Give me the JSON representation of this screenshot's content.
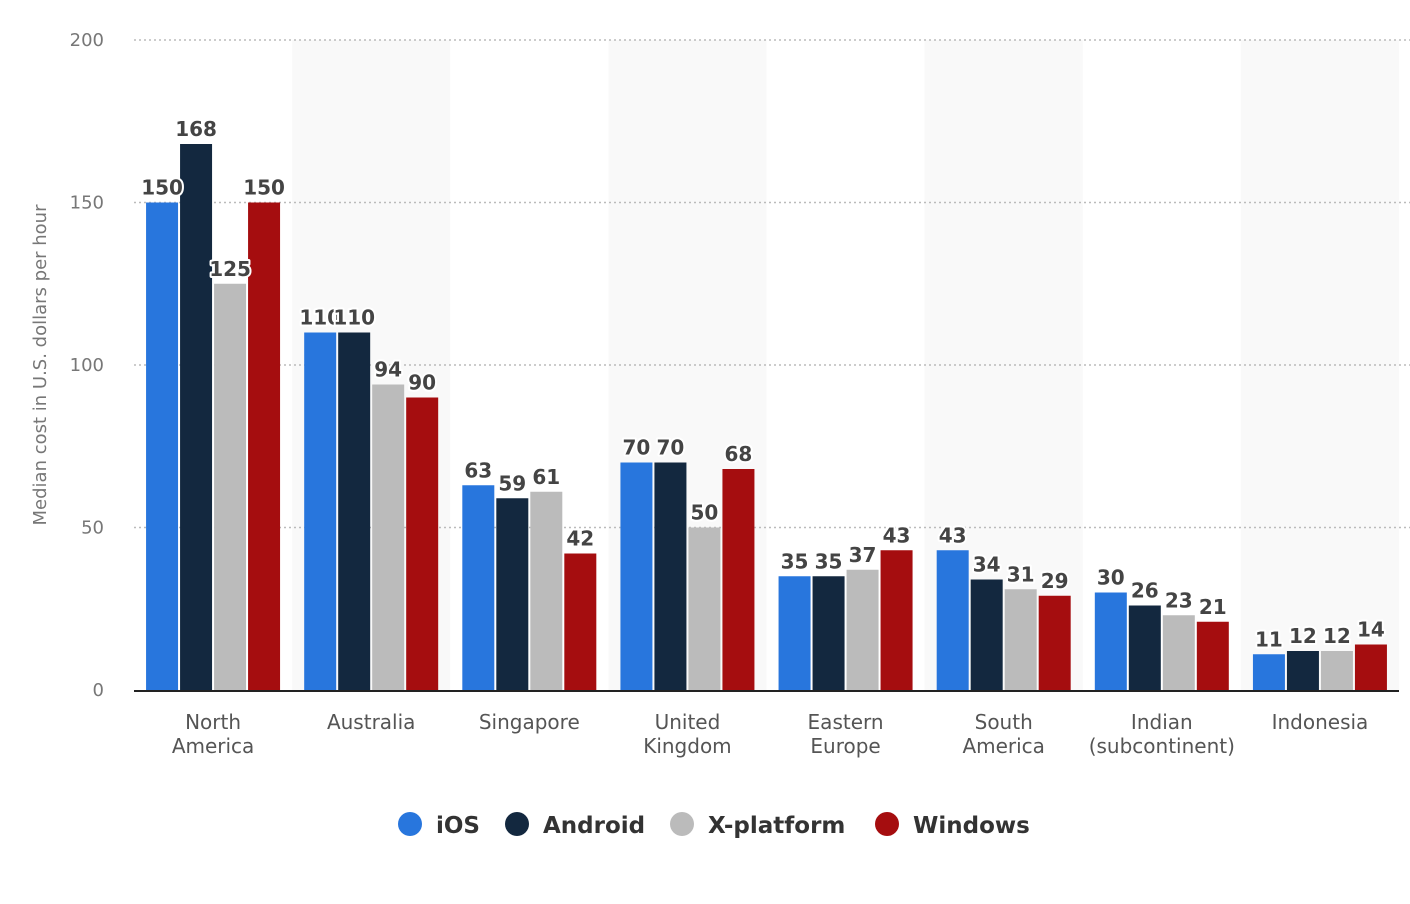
{
  "chart_data": {
    "type": "bar",
    "ylabel": "Median cost in U.S. dollars per hour",
    "xlabel": "",
    "ylim": [
      0,
      200
    ],
    "yticks": [
      0,
      50,
      100,
      150,
      200
    ],
    "grid": true,
    "legend_position": "bottom",
    "categories": [
      [
        "North",
        "America"
      ],
      [
        "Australia"
      ],
      [
        "Singapore"
      ],
      [
        "United",
        "Kingdom"
      ],
      [
        "Eastern",
        "Europe"
      ],
      [
        "South",
        "America"
      ],
      [
        "Indian",
        "(subcontinent)"
      ],
      [
        "Indonesia"
      ]
    ],
    "series": [
      {
        "name": "iOS",
        "color": "#2876dd",
        "values": [
          150,
          110,
          63,
          70,
          35,
          43,
          30,
          11
        ]
      },
      {
        "name": "Android",
        "color": "#13283f",
        "values": [
          168,
          110,
          59,
          70,
          35,
          34,
          26,
          12
        ]
      },
      {
        "name": "X-platform",
        "color": "#bbbbbb",
        "values": [
          125,
          94,
          61,
          50,
          37,
          31,
          23,
          12
        ]
      },
      {
        "name": "Windows",
        "color": "#a50d0f",
        "values": [
          150,
          90,
          42,
          68,
          43,
          29,
          21,
          14
        ]
      }
    ]
  }
}
